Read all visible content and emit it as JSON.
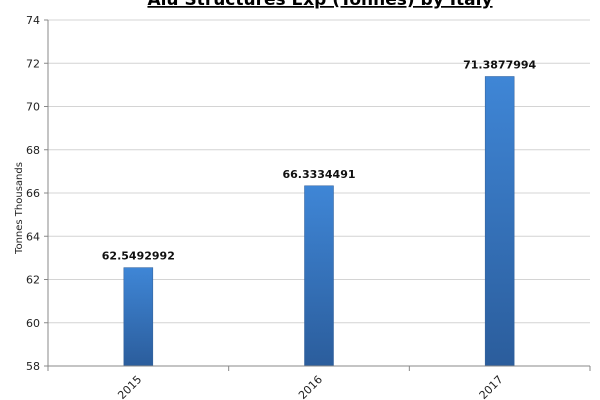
{
  "chart_data": {
    "type": "bar",
    "title": "Alu Structures Exp (Tonnes) by Italy",
    "xlabel": "",
    "ylabel": "Tonnes Thousands",
    "categories": [
      "2015",
      "2016",
      "2017"
    ],
    "values": [
      62.5492992,
      66.3334491,
      71.3877994
    ],
    "value_labels": [
      "62.5492992",
      "66.3334491",
      "71.3877994"
    ],
    "ylim": [
      58,
      74
    ],
    "yticks": [
      58,
      60,
      62,
      64,
      66,
      68,
      70,
      72,
      74
    ],
    "ytick_labels": [
      "58",
      "60",
      "62",
      "64",
      "66",
      "68",
      "70",
      "72",
      "74"
    ],
    "grid": true,
    "bar_color": "#3a7bc8"
  }
}
